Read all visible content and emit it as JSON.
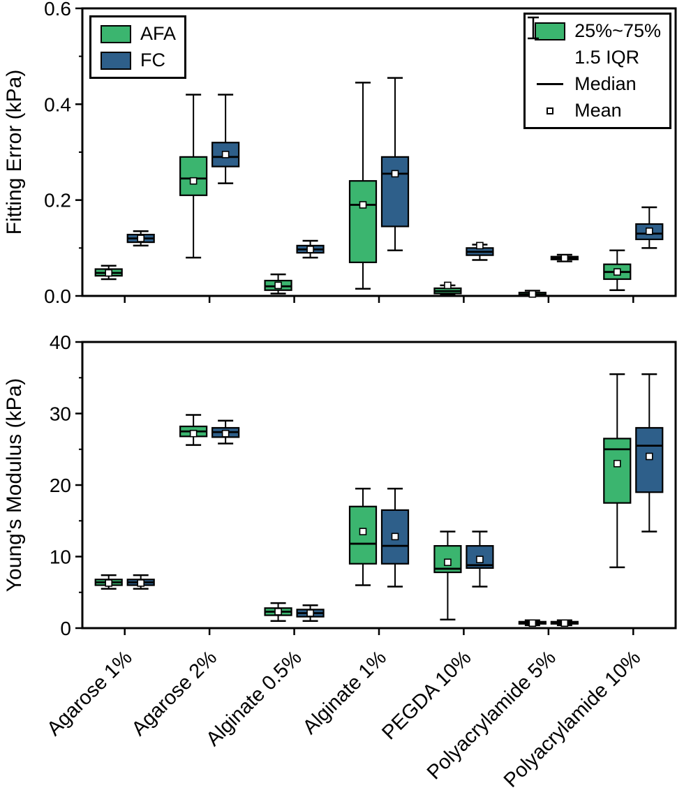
{
  "colors": {
    "afa": "#3bb56f",
    "fc": "#2e5f8a",
    "stroke": "#000000",
    "mean_fill": "#ffffff"
  },
  "legend_series": {
    "entries": [
      {
        "label": "AFA",
        "color_key": "afa"
      },
      {
        "label": "FC",
        "color_key": "fc"
      }
    ]
  },
  "legend_stats": {
    "entries": [
      {
        "label": "25%~75%",
        "icon": "box-swatch"
      },
      {
        "label": "1.5 IQR",
        "icon": "whisker-icon"
      },
      {
        "label": "Median",
        "icon": "median-line-icon"
      },
      {
        "label": "Mean",
        "icon": "mean-square-icon"
      }
    ]
  },
  "chart_data": [
    {
      "id": "fitting-error",
      "type": "box",
      "ylabel": "Fitting Error (kPa)",
      "ylim": [
        0,
        0.6
      ],
      "yticks": [
        0.0,
        0.2,
        0.4,
        0.6
      ],
      "ytick_labels": [
        "0.0",
        "0.2",
        "0.4",
        "0.6"
      ],
      "minor_yticks": [
        0.1,
        0.3,
        0.5
      ],
      "show_x_labels": false,
      "categories": [
        "Agarose 1%",
        "Agarose 2%",
        "Alginate 0.5%",
        "Alginate 1%",
        "PEGDA 10%",
        "Polyacrylamide 5%",
        "Polyacrylamide 10%"
      ],
      "series": [
        {
          "name": "AFA",
          "color_key": "afa",
          "boxes": [
            {
              "low": 0.035,
              "q1": 0.042,
              "median": 0.048,
              "q3": 0.056,
              "high": 0.063,
              "mean": 0.048
            },
            {
              "low": 0.08,
              "q1": 0.21,
              "median": 0.245,
              "q3": 0.29,
              "high": 0.42,
              "mean": 0.24
            },
            {
              "low": 0.005,
              "q1": 0.012,
              "median": 0.02,
              "q3": 0.032,
              "high": 0.045,
              "mean": 0.022
            },
            {
              "low": 0.015,
              "q1": 0.07,
              "median": 0.19,
              "q3": 0.24,
              "high": 0.445,
              "mean": 0.19
            },
            {
              "low": 0.002,
              "q1": 0.005,
              "median": 0.01,
              "q3": 0.016,
              "high": 0.022,
              "mean": 0.022
            },
            {
              "low": 0.0,
              "q1": 0.001,
              "median": 0.003,
              "q3": 0.007,
              "high": 0.011,
              "mean": 0.004
            },
            {
              "low": 0.012,
              "q1": 0.035,
              "median": 0.05,
              "q3": 0.066,
              "high": 0.095,
              "mean": 0.05
            }
          ]
        },
        {
          "name": "FC",
          "color_key": "fc",
          "boxes": [
            {
              "low": 0.105,
              "q1": 0.112,
              "median": 0.12,
              "q3": 0.128,
              "high": 0.135,
              "mean": 0.12
            },
            {
              "low": 0.235,
              "q1": 0.27,
              "median": 0.29,
              "q3": 0.32,
              "high": 0.42,
              "mean": 0.295
            },
            {
              "low": 0.08,
              "q1": 0.09,
              "median": 0.097,
              "q3": 0.105,
              "high": 0.115,
              "mean": 0.097
            },
            {
              "low": 0.095,
              "q1": 0.145,
              "median": 0.255,
              "q3": 0.29,
              "high": 0.455,
              "mean": 0.255
            },
            {
              "low": 0.075,
              "q1": 0.085,
              "median": 0.092,
              "q3": 0.1,
              "high": 0.107,
              "mean": 0.105
            },
            {
              "low": 0.072,
              "q1": 0.076,
              "median": 0.079,
              "q3": 0.082,
              "high": 0.086,
              "mean": 0.079
            },
            {
              "low": 0.1,
              "q1": 0.118,
              "median": 0.13,
              "q3": 0.15,
              "high": 0.185,
              "mean": 0.135
            }
          ]
        }
      ]
    },
    {
      "id": "youngs-modulus",
      "type": "box",
      "ylabel": "Young's Modulus (kPa)",
      "ylim": [
        0,
        40
      ],
      "yticks": [
        0,
        10,
        20,
        30,
        40
      ],
      "ytick_labels": [
        "0",
        "10",
        "20",
        "30",
        "40"
      ],
      "minor_yticks": [
        5,
        15,
        25,
        35
      ],
      "show_x_labels": true,
      "categories": [
        "Agarose 1%",
        "Agarose 2%",
        "Alginate 0.5%",
        "Alginate 1%",
        "PEGDA 10%",
        "Polyacrylamide 5%",
        "Polyacrylamide 10%"
      ],
      "series": [
        {
          "name": "AFA",
          "color_key": "afa",
          "boxes": [
            {
              "low": 5.5,
              "q1": 6.0,
              "median": 6.4,
              "q3": 6.8,
              "high": 7.4,
              "mean": 6.3
            },
            {
              "low": 25.6,
              "q1": 26.8,
              "median": 27.5,
              "q3": 28.2,
              "high": 29.8,
              "mean": 27.2
            },
            {
              "low": 1.0,
              "q1": 1.8,
              "median": 2.3,
              "q3": 2.8,
              "high": 3.5,
              "mean": 2.3
            },
            {
              "low": 6.0,
              "q1": 9.0,
              "median": 11.8,
              "q3": 17.0,
              "high": 19.5,
              "mean": 13.5
            },
            {
              "low": 1.2,
              "q1": 7.8,
              "median": 8.3,
              "q3": 11.5,
              "high": 13.5,
              "mean": 9.2
            },
            {
              "low": 0.4,
              "q1": 0.6,
              "median": 0.7,
              "q3": 0.9,
              "high": 1.1,
              "mean": 0.7
            },
            {
              "low": 8.5,
              "q1": 17.5,
              "median": 25.0,
              "q3": 26.5,
              "high": 35.5,
              "mean": 23.0
            }
          ]
        },
        {
          "name": "FC",
          "color_key": "fc",
          "boxes": [
            {
              "low": 5.5,
              "q1": 6.0,
              "median": 6.4,
              "q3": 6.8,
              "high": 7.4,
              "mean": 6.3
            },
            {
              "low": 25.8,
              "q1": 26.7,
              "median": 27.4,
              "q3": 28.0,
              "high": 29.0,
              "mean": 27.2
            },
            {
              "low": 1.0,
              "q1": 1.6,
              "median": 2.1,
              "q3": 2.6,
              "high": 3.2,
              "mean": 2.1
            },
            {
              "low": 5.8,
              "q1": 9.0,
              "median": 11.5,
              "q3": 16.5,
              "high": 19.5,
              "mean": 12.8
            },
            {
              "low": 5.8,
              "q1": 8.4,
              "median": 8.8,
              "q3": 11.5,
              "high": 13.5,
              "mean": 9.6
            },
            {
              "low": 0.4,
              "q1": 0.6,
              "median": 0.7,
              "q3": 0.9,
              "high": 1.1,
              "mean": 0.7
            },
            {
              "low": 13.5,
              "q1": 19.0,
              "median": 25.5,
              "q3": 28.0,
              "high": 35.5,
              "mean": 24.0
            }
          ]
        }
      ]
    }
  ]
}
